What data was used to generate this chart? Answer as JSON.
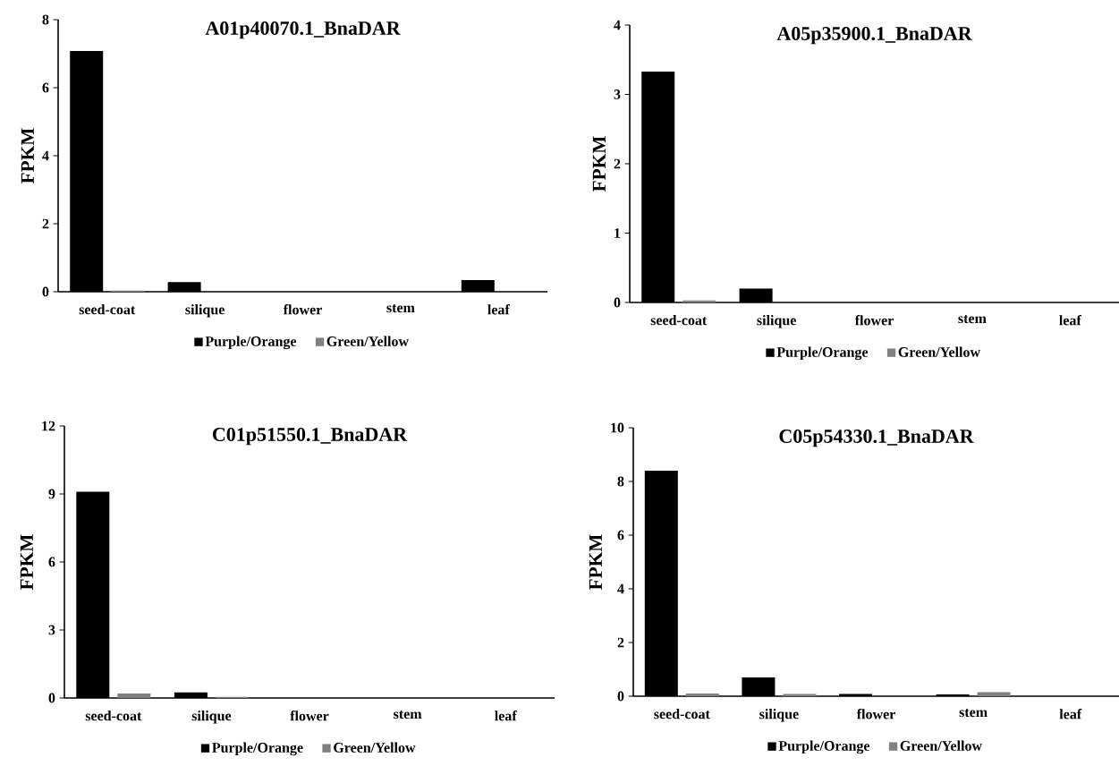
{
  "chart_data": [
    {
      "type": "bar",
      "title": "A01p40070.1_BnaDAR",
      "ylabel": "FPKM",
      "categories": [
        "seed-coat",
        "silique",
        "flower",
        "stem",
        "leaf"
      ],
      "ylim": [
        0,
        8
      ],
      "yticks": [
        0,
        2,
        4,
        6,
        8
      ],
      "legend": "bottom",
      "series": [
        {
          "name": "Purple/Orange",
          "color": "#000000",
          "values": [
            7.08,
            0.28,
            0,
            0,
            0.34
          ]
        },
        {
          "name": "Green/Yellow",
          "color": "#808080",
          "values": [
            0.03,
            0,
            0,
            0,
            0
          ]
        }
      ]
    },
    {
      "type": "bar",
      "title": "A05p35900.1_BnaDAR",
      "ylabel": "FPKM",
      "categories": [
        "seed-coat",
        "silique",
        "flower",
        "stem",
        "leaf"
      ],
      "ylim": [
        0,
        4
      ],
      "yticks": [
        0,
        1,
        2,
        3,
        4
      ],
      "legend": "bottom",
      "series": [
        {
          "name": "Purple/Orange",
          "color": "#000000",
          "values": [
            3.33,
            0.2,
            0,
            0,
            0
          ]
        },
        {
          "name": "Green/Yellow",
          "color": "#808080",
          "values": [
            0.03,
            0,
            0,
            0,
            0
          ]
        }
      ]
    },
    {
      "type": "bar",
      "title": "C01p51550.1_BnaDAR",
      "ylabel": "FPKM",
      "categories": [
        "seed-coat",
        "silique",
        "flower",
        "stem",
        "leaf"
      ],
      "ylim": [
        0,
        12
      ],
      "yticks": [
        0,
        3,
        6,
        9,
        12
      ],
      "legend": "bottom",
      "series": [
        {
          "name": "Purple/Orange",
          "color": "#000000",
          "values": [
            9.1,
            0.25,
            0,
            0,
            0
          ]
        },
        {
          "name": "Green/Yellow",
          "color": "#808080",
          "values": [
            0.2,
            0.05,
            0,
            0,
            0
          ]
        }
      ]
    },
    {
      "type": "bar",
      "title": "C05p54330.1_BnaDAR",
      "ylabel": "FPKM",
      "categories": [
        "seed-coat",
        "silique",
        "flower",
        "stem",
        "leaf"
      ],
      "ylim": [
        0,
        10
      ],
      "yticks": [
        0,
        2,
        4,
        6,
        8,
        10
      ],
      "legend": "bottom",
      "series": [
        {
          "name": "Purple/Orange",
          "color": "#000000",
          "values": [
            8.4,
            0.7,
            0.08,
            0.07,
            0
          ]
        },
        {
          "name": "Green/Yellow",
          "color": "#808080",
          "values": [
            0.1,
            0.08,
            0,
            0.15,
            0
          ]
        }
      ]
    }
  ]
}
